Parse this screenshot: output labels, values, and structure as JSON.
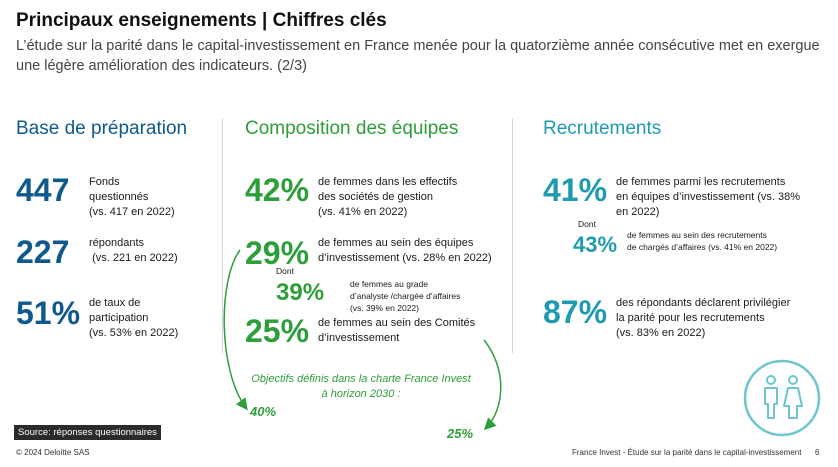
{
  "header": {
    "title": "Principaux enseignements | Chiffres clés",
    "subtitle": "L’étude sur la parité dans le capital-investissement en France menée pour la quatorzième année consécutive met en exergue une légère amélioration des indicateurs. (2/3)"
  },
  "columns": {
    "preparation": {
      "heading": "Base de préparation",
      "stats": [
        {
          "value": "447",
          "text": "Fonds\nquestionnés\n(vs. 417 en 2022)"
        },
        {
          "value": "227",
          "text": "répondants\n (vs. 221 en 2022)"
        },
        {
          "value": "51%",
          "text": "de taux de\nparticipation\n(vs. 53% en 2022)"
        }
      ]
    },
    "composition": {
      "heading": "Composition des équipes",
      "stats": [
        {
          "value": "42%",
          "text": "de femmes dans les effectifs\ndes sociétés de gestion\n(vs. 41% en 2022)"
        },
        {
          "value": "29%",
          "text": "de femmes au sein des équipes\nd’investissement (vs. 28% en 2022)"
        },
        {
          "value": "39%",
          "text": "de femmes au grade\nd’analyste /chargée d’affaires\n(vs. 39% en 2022)"
        },
        {
          "value": "25%",
          "text": "de femmes au sein des Comités\nd’investissement"
        }
      ],
      "dont": "Dont",
      "objectif": "Objectifs définis dans la charte France Invest\nà horizon 2030 :",
      "goal_left": "40%",
      "goal_right": "25%"
    },
    "recrutements": {
      "heading": "Recrutements",
      "stats": [
        {
          "value": "41%",
          "text": "de femmes parmi les recrutements\nen équipes d’investissement (vs. 38%\nen 2022)"
        },
        {
          "value": "43%",
          "text": "de femmes au sein des recrutements\nde chargés d’affaires (vs. 41% en 2022)"
        },
        {
          "value": "87%",
          "text": "des répondants déclarent privilégier\nla parité pour les recrutements\n(vs. 83% en 2022)"
        }
      ],
      "dont": "Dont"
    }
  },
  "footer": {
    "source": "Source: réponses questionnaires",
    "copyright": "© 2024 Deloitte SAS",
    "doc_title": "France Invest - Étude sur la parité dans le capital-investissement",
    "page": "6"
  },
  "icons": {
    "people": "man-woman-icon"
  },
  "colors": {
    "blue": "#0f5a8c",
    "green": "#2e9e3a",
    "teal": "#1f9bb0"
  }
}
